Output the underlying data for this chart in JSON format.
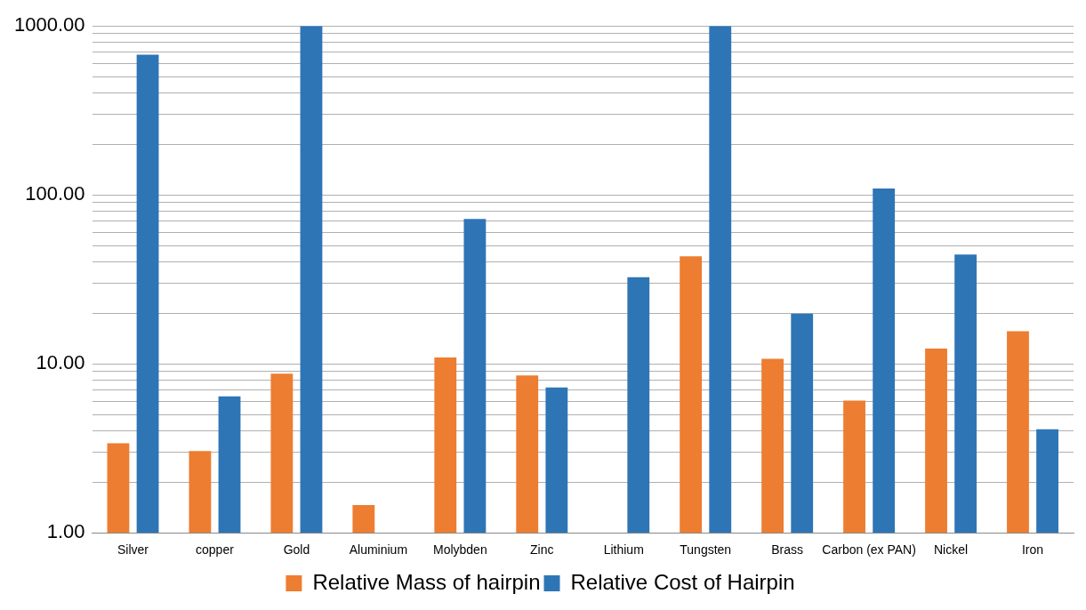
{
  "chart_data": {
    "type": "bar",
    "categories": [
      "Silver",
      "copper",
      "Gold",
      "Aluminium",
      "Molybden",
      "Zinc",
      "Lithium",
      "Tungsten",
      "Brass",
      "Carbon (ex PAN)",
      "Nickel",
      "Iron"
    ],
    "series": [
      {
        "name": "Relative Mass of hairpin",
        "color": "#ed7d31",
        "values": [
          3.39,
          3.05,
          8.75,
          1.46,
          10.9,
          8.55,
          null,
          43.3,
          10.7,
          6.06,
          12.3,
          15.6
        ]
      },
      {
        "name": "Relative Cost of Hairpin",
        "color": "#2e75b6",
        "values": [
          677,
          6.43,
          1000,
          null,
          72,
          7.24,
          32.6,
          1000,
          19.8,
          109,
          44.4,
          4.1
        ]
      }
    ],
    "log": "y",
    "ylim": [
      1,
      1000
    ],
    "yticks": [
      {
        "value": 1,
        "label": "1.00"
      },
      {
        "value": 2,
        "label": null
      },
      {
        "value": 3,
        "label": null
      },
      {
        "value": 4,
        "label": null
      },
      {
        "value": 5,
        "label": null
      },
      {
        "value": 6,
        "label": null
      },
      {
        "value": 7,
        "label": null
      },
      {
        "value": 8,
        "label": null
      },
      {
        "value": 9,
        "label": null
      },
      {
        "value": 10,
        "label": "10.00"
      },
      {
        "value": 20,
        "label": null
      },
      {
        "value": 30,
        "label": null
      },
      {
        "value": 40,
        "label": null
      },
      {
        "value": 50,
        "label": null
      },
      {
        "value": 60,
        "label": null
      },
      {
        "value": 70,
        "label": null
      },
      {
        "value": 80,
        "label": null
      },
      {
        "value": 90,
        "label": null
      },
      {
        "value": 100,
        "label": "100.00"
      },
      {
        "value": 200,
        "label": null
      },
      {
        "value": 300,
        "label": null
      },
      {
        "value": 400,
        "label": null
      },
      {
        "value": 500,
        "label": null
      },
      {
        "value": 600,
        "label": null
      },
      {
        "value": 700,
        "label": null
      },
      {
        "value": 800,
        "label": null
      },
      {
        "value": 900,
        "label": null
      },
      {
        "value": 1000,
        "label": "1000.00"
      }
    ],
    "grid": "y",
    "legend": "bottom"
  }
}
